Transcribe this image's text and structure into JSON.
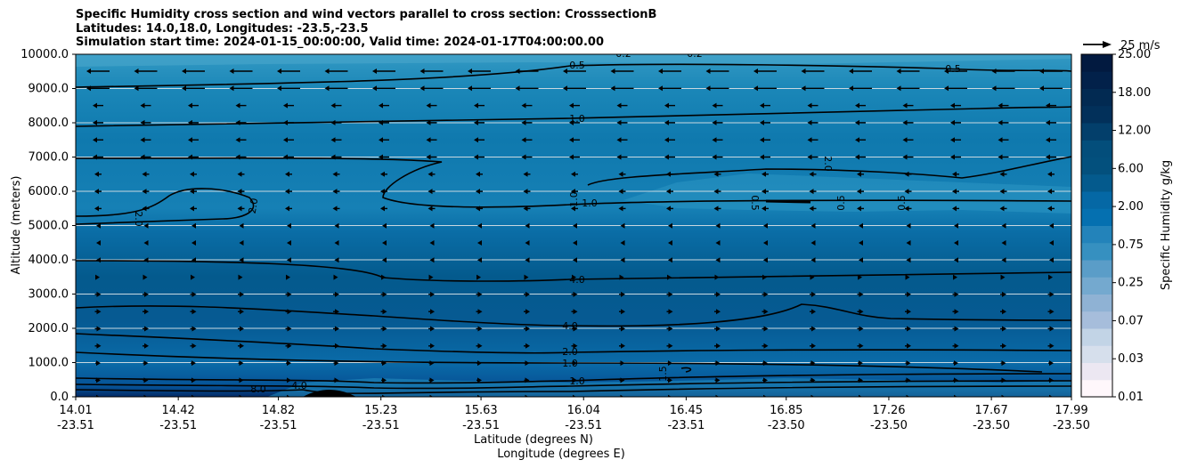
{
  "title": {
    "line1": "Specific Humidity cross section and wind vectors parallel to cross section: CrosssectionB",
    "line2": "Latitudes: 14.0,18.0, Longitudes: -23.5,-23.5",
    "line3": "Simulation start time: 2024-01-15_00:00:00, Valid time: 2024-01-17T04:00:00.00"
  },
  "chart_data": {
    "type": "contour",
    "ylabel": "Altitude (meters)",
    "xlabel_lat": "Latitude (degrees N)",
    "xlabel_lon": "Longitude (degrees E)",
    "ylim": [
      0,
      10000
    ],
    "yticks": [
      0,
      1000,
      2000,
      3000,
      4000,
      5000,
      6000,
      7000,
      8000,
      9000,
      10000
    ],
    "yticklabels": [
      "0.0",
      "1000.0",
      "2000.0",
      "3000.0",
      "4000.0",
      "5000.0",
      "6000.0",
      "7000.0",
      "8000.0",
      "9000.0",
      "10000.0"
    ],
    "xlim_lat": [
      14.01,
      17.99
    ],
    "xticks": [
      {
        "lat": "14.01",
        "lon": "-23.51"
      },
      {
        "lat": "14.42",
        "lon": "-23.51"
      },
      {
        "lat": "14.82",
        "lon": "-23.51"
      },
      {
        "lat": "15.23",
        "lon": "-23.51"
      },
      {
        "lat": "15.63",
        "lon": "-23.51"
      },
      {
        "lat": "16.04",
        "lon": "-23.51"
      },
      {
        "lat": "16.45",
        "lon": "-23.51"
      },
      {
        "lat": "16.85",
        "lon": "-23.50"
      },
      {
        "lat": "17.26",
        "lon": "-23.50"
      },
      {
        "lat": "17.67",
        "lon": "-23.50"
      },
      {
        "lat": "17.99",
        "lon": "-23.50"
      }
    ],
    "grid": "horizontal",
    "colorbar": {
      "label": "Specific Humidity g/kg",
      "ticks": [
        "0.01",
        "0.03",
        "0.07",
        "0.25",
        "0.75",
        "2.00",
        "6.00",
        "12.00",
        "18.00",
        "25.00"
      ],
      "colormap": "PuBu"
    },
    "contour_levels": [
      0.2,
      0.5,
      1.0,
      2.0,
      4.0,
      6.0,
      8.0
    ],
    "contour_lines": [
      {
        "level": 0.5,
        "altitude_m": 9500
      },
      {
        "level": 1.0,
        "altitude_m": 8100
      },
      {
        "level": 2.0,
        "altitude_m": 6700
      },
      {
        "level": 1.0,
        "altitude_m": 5600
      },
      {
        "level": 2.0,
        "altitude_m": 5100
      },
      {
        "level": 4.0,
        "altitude_m": 3300
      },
      {
        "level": 4.0,
        "altitude_m": 2100
      },
      {
        "level": 2.0,
        "altitude_m": 1300
      },
      {
        "level": 1.0,
        "altitude_m": 1000
      },
      {
        "level": 1.0,
        "altitude_m": 450
      },
      {
        "level": 4.0,
        "altitude_m": 300
      },
      {
        "level": 8.0,
        "altitude_m": 150
      }
    ],
    "wind": {
      "reference_label": "25 m/s",
      "upper_direction": "southward",
      "lower_direction": "northward"
    }
  }
}
